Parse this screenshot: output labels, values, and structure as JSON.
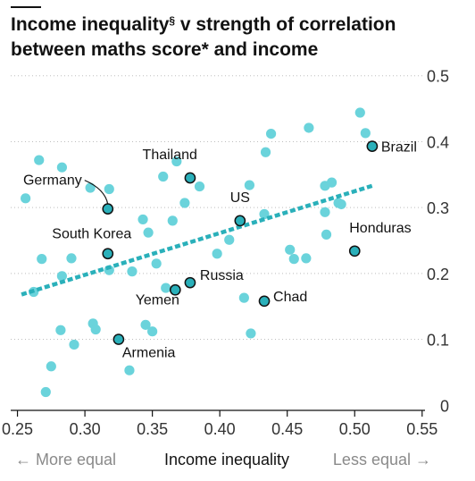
{
  "chart_data": {
    "type": "scatter",
    "title_main": "Income inequality",
    "title_marker": "§",
    "title_rest": " v strength of correlation between maths score* and income",
    "xlabel": "Income inequality",
    "x_left_note": "← More equal",
    "x_right_note": "Less equal →",
    "xlim": [
      0.245,
      0.57
    ],
    "ylim": [
      -0.02,
      0.52
    ],
    "x_ticks": [
      0.25,
      0.3,
      0.35,
      0.4,
      0.45,
      0.5,
      0.55
    ],
    "x_tick_labels": [
      "0.25",
      "0.30",
      "0.35",
      "0.40",
      "0.45",
      "0.50",
      "0.55"
    ],
    "y_ticks": [
      0,
      0.1,
      0.2,
      0.3,
      0.4,
      0.5
    ],
    "y_tick_labels": [
      "0",
      "0.1",
      "0.2",
      "0.3",
      "0.4",
      "0.5"
    ],
    "grid": "horizontal dotted",
    "colors": {
      "point": "#6ad3db",
      "highlight": "#2ab0ba",
      "trend": "#2ab0ba",
      "axis": "#121212",
      "grid": "#bdbdbd"
    },
    "trend_line": {
      "x": [
        0.253,
        0.513
      ],
      "y": [
        0.168,
        0.333
      ]
    },
    "points": [
      {
        "x": 0.262,
        "y": 0.172
      },
      {
        "x": 0.268,
        "y": 0.222
      },
      {
        "x": 0.283,
        "y": 0.196
      },
      {
        "x": 0.29,
        "y": 0.223
      },
      {
        "x": 0.318,
        "y": 0.205
      },
      {
        "x": 0.335,
        "y": 0.203
      },
      {
        "x": 0.353,
        "y": 0.215
      },
      {
        "x": 0.256,
        "y": 0.314
      },
      {
        "x": 0.266,
        "y": 0.372
      },
      {
        "x": 0.283,
        "y": 0.361
      },
      {
        "x": 0.304,
        "y": 0.33
      },
      {
        "x": 0.318,
        "y": 0.328
      },
      {
        "x": 0.343,
        "y": 0.282
      },
      {
        "x": 0.347,
        "y": 0.262
      },
      {
        "x": 0.358,
        "y": 0.347
      },
      {
        "x": 0.365,
        "y": 0.28
      },
      {
        "x": 0.368,
        "y": 0.37
      },
      {
        "x": 0.374,
        "y": 0.307
      },
      {
        "x": 0.385,
        "y": 0.332
      },
      {
        "x": 0.398,
        "y": 0.23
      },
      {
        "x": 0.407,
        "y": 0.251
      },
      {
        "x": 0.422,
        "y": 0.334
      },
      {
        "x": 0.433,
        "y": 0.29
      },
      {
        "x": 0.434,
        "y": 0.384
      },
      {
        "x": 0.438,
        "y": 0.412
      },
      {
        "x": 0.466,
        "y": 0.421
      },
      {
        "x": 0.452,
        "y": 0.236
      },
      {
        "x": 0.455,
        "y": 0.222
      },
      {
        "x": 0.464,
        "y": 0.223
      },
      {
        "x": 0.478,
        "y": 0.333
      },
      {
        "x": 0.483,
        "y": 0.338
      },
      {
        "x": 0.478,
        "y": 0.293
      },
      {
        "x": 0.488,
        "y": 0.307
      },
      {
        "x": 0.49,
        "y": 0.305
      },
      {
        "x": 0.479,
        "y": 0.259
      },
      {
        "x": 0.504,
        "y": 0.444
      },
      {
        "x": 0.508,
        "y": 0.413
      },
      {
        "x": 0.418,
        "y": 0.163
      },
      {
        "x": 0.423,
        "y": 0.109
      },
      {
        "x": 0.36,
        "y": 0.178
      },
      {
        "x": 0.345,
        "y": 0.122
      },
      {
        "x": 0.35,
        "y": 0.112
      },
      {
        "x": 0.282,
        "y": 0.114
      },
      {
        "x": 0.306,
        "y": 0.124
      },
      {
        "x": 0.308,
        "y": 0.115
      },
      {
        "x": 0.292,
        "y": 0.092
      },
      {
        "x": 0.333,
        "y": 0.053
      },
      {
        "x": 0.275,
        "y": 0.059
      },
      {
        "x": 0.271,
        "y": 0.02
      }
    ],
    "highlighted": [
      {
        "name": "Brazil",
        "x": 0.513,
        "y": 0.393
      },
      {
        "name": "Thailand",
        "x": 0.378,
        "y": 0.345
      },
      {
        "name": "Germany",
        "x": 0.317,
        "y": 0.298
      },
      {
        "name": "US",
        "x": 0.415,
        "y": 0.28
      },
      {
        "name": "South Korea",
        "x": 0.317,
        "y": 0.23
      },
      {
        "name": "Honduras",
        "x": 0.5,
        "y": 0.234
      },
      {
        "name": "Russia",
        "x": 0.378,
        "y": 0.186
      },
      {
        "name": "Yemen",
        "x": 0.367,
        "y": 0.175
      },
      {
        "name": "Chad",
        "x": 0.433,
        "y": 0.158
      },
      {
        "name": "Armenia",
        "x": 0.325,
        "y": 0.1
      }
    ]
  }
}
